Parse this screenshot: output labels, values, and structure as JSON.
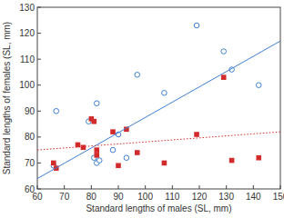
{
  "chart_data": {
    "type": "scatter",
    "x_label": "Standard lengths of males (SL, mm)",
    "y_label": "Standard lengths of females (SL, mm)",
    "xlim": [
      60,
      150
    ],
    "ylim": [
      60,
      130
    ],
    "xticks": [
      60,
      70,
      80,
      90,
      100,
      110,
      120,
      130,
      140,
      150
    ],
    "yticks": [
      60,
      70,
      80,
      90,
      100,
      110,
      120,
      130
    ],
    "grid": false,
    "series": [
      {
        "type": "scatter",
        "marker": "circle",
        "color": "#3f7fd0",
        "x": [
          66,
          67,
          79,
          81,
          82,
          82,
          83,
          88,
          90,
          93,
          97,
          107,
          119,
          129,
          132,
          142
        ],
        "values": [
          69,
          90,
          86,
          72,
          93,
          70,
          71,
          75,
          81,
          72,
          104,
          97,
          123,
          113,
          106,
          100
        ]
      },
      {
        "type": "scatter",
        "marker": "square",
        "color": "#d22b2b",
        "x": [
          66,
          67,
          75,
          77,
          80,
          81,
          82,
          82,
          88,
          90,
          93,
          97,
          107,
          119,
          129,
          132,
          142
        ],
        "values": [
          70,
          68,
          77,
          76,
          87,
          86,
          75,
          73,
          82,
          69,
          83,
          74,
          70,
          81,
          103,
          71,
          72
        ]
      },
      {
        "type": "line",
        "line_style": "solid",
        "color": "#3f7fd0",
        "x": [
          60,
          150
        ],
        "values": [
          64,
          117
        ]
      },
      {
        "type": "line",
        "line_style": "dotted",
        "color": "#d22b2b",
        "x": [
          60,
          150
        ],
        "values": [
          75,
          82
        ]
      }
    ]
  }
}
